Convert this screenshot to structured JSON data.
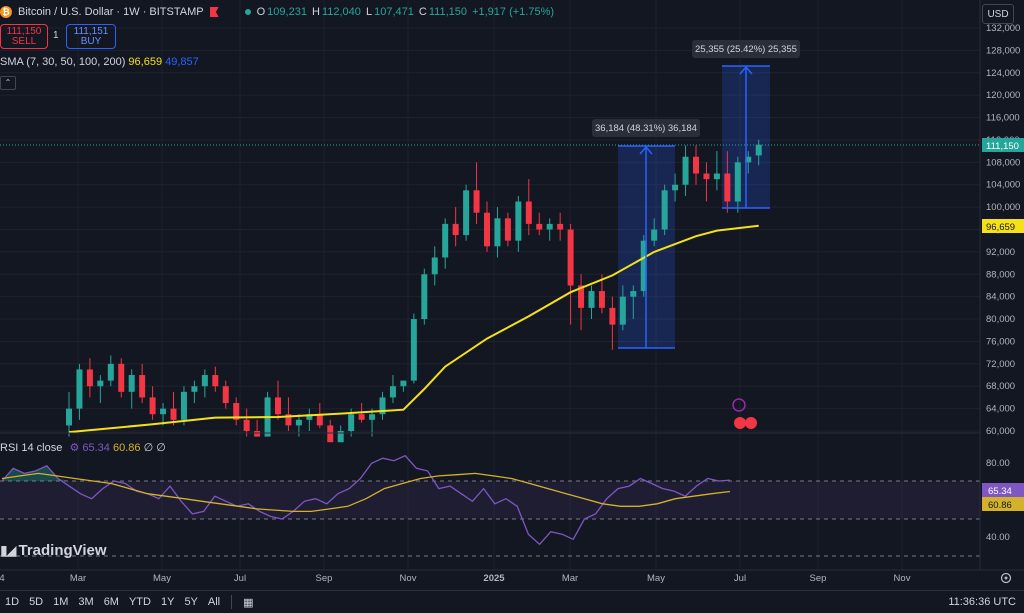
{
  "header": {
    "symbol": "Bitcoin / U.S. Dollar · 1W · BITSTAMP",
    "open_label": "O",
    "open": "109,231",
    "high_label": "H",
    "high": "112,040",
    "low_label": "L",
    "low": "107,471",
    "close_label": "C",
    "close": "111,150",
    "change": "+1,917 (+1.75%)"
  },
  "trade": {
    "sell_price": "111,150",
    "sell_label": "SELL",
    "spread": "1",
    "buy_price": "111,151",
    "buy_label": "BUY"
  },
  "sma": {
    "label": "SMA (7, 30, 50, 100, 200)",
    "v1": "96,659",
    "v2": "49,857"
  },
  "rsi": {
    "label": "RSI 14 close",
    "v1": "65.34",
    "v2": "60.86",
    "v3": "∅",
    "v4": "∅"
  },
  "currency": "USD",
  "price_axis": [
    "132,000",
    "128,000",
    "124,000",
    "120,000",
    "116,000",
    "112,000",
    "108,000",
    "104,000",
    "100,000",
    "96,000",
    "92,000",
    "88,000",
    "84,000",
    "80,000",
    "76,000",
    "72,000",
    "68,000",
    "64,000",
    "60,000"
  ],
  "price_tags": {
    "last": "111,150",
    "sma": "96,659"
  },
  "rsi_axis": [
    "80.00",
    "40.00"
  ],
  "rsi_tags": {
    "rsi": "65.34",
    "ma": "60.86"
  },
  "time_axis": [
    "4",
    "Mar",
    "May",
    "Jul",
    "Sep",
    "Nov",
    "2025",
    "Mar",
    "May",
    "Jul",
    "Sep",
    "Nov"
  ],
  "measure1": {
    "label": "36,184 (48.31%) 36,184"
  },
  "measure2": {
    "label": "25,355 (25.42%) 25,355"
  },
  "logo": "TradingView",
  "ranges": [
    "1D",
    "5D",
    "1M",
    "3M",
    "6M",
    "YTD",
    "1Y",
    "5Y",
    "All"
  ],
  "clock": "11:36:36 UTC",
  "colors": {
    "up": "#26a69a",
    "down": "#f23645",
    "sma": "#f5e11a",
    "rsi": "#7e57c2",
    "rsi_ma": "#d4b12a",
    "bg": "#131722",
    "measure": "#2962ff"
  },
  "chart_data": {
    "type": "candlestick",
    "ylim": [
      60000,
      132000
    ],
    "candles": [
      [
        61000,
        67000,
        59000,
        64000
      ],
      [
        64000,
        72000,
        62000,
        71000
      ],
      [
        71000,
        73000,
        66000,
        68000
      ],
      [
        68000,
        70000,
        65000,
        69000
      ],
      [
        69000,
        73500,
        68000,
        72000
      ],
      [
        72000,
        73000,
        66000,
        67000
      ],
      [
        67000,
        71000,
        64000,
        70000
      ],
      [
        70000,
        72000,
        65000,
        66000
      ],
      [
        66000,
        68000,
        62000,
        63000
      ],
      [
        63000,
        65000,
        61000,
        64000
      ],
      [
        64000,
        67000,
        61000,
        62000
      ],
      [
        62000,
        68000,
        61000,
        67000
      ],
      [
        67000,
        69000,
        65000,
        68000
      ],
      [
        68000,
        71000,
        66000,
        70000
      ],
      [
        70000,
        71500,
        67000,
        68000
      ],
      [
        68000,
        69000,
        64000,
        65000
      ],
      [
        65000,
        66000,
        61000,
        62000
      ],
      [
        62000,
        64000,
        59000,
        60000
      ],
      [
        60000,
        62000,
        58000,
        59000
      ],
      [
        59000,
        67000,
        58000,
        66000
      ],
      [
        66000,
        69000,
        62000,
        63000
      ],
      [
        63000,
        66000,
        60000,
        61000
      ],
      [
        61000,
        63000,
        59000,
        62000
      ],
      [
        62000,
        64000,
        60000,
        63000
      ],
      [
        63000,
        65000,
        60500,
        61000
      ],
      [
        61000,
        62000,
        57000,
        58000
      ],
      [
        58000,
        61000,
        56000,
        60000
      ],
      [
        60000,
        64000,
        59000,
        63000
      ],
      [
        63000,
        65000,
        61500,
        62000
      ],
      [
        62000,
        64000,
        59000,
        63000
      ],
      [
        63000,
        67000,
        62000,
        66000
      ],
      [
        66000,
        70000,
        65000,
        68000
      ],
      [
        68000,
        69000,
        67000,
        69000
      ],
      [
        69000,
        81000,
        68500,
        80000
      ],
      [
        80000,
        89000,
        79000,
        88000
      ],
      [
        88000,
        93000,
        86000,
        91000
      ],
      [
        91000,
        98000,
        89000,
        97000
      ],
      [
        97000,
        100000,
        93000,
        95000
      ],
      [
        95000,
        104000,
        94000,
        103000
      ],
      [
        103000,
        108000,
        97000,
        99000
      ],
      [
        99000,
        101000,
        92000,
        93000
      ],
      [
        93000,
        100000,
        91000,
        98000
      ],
      [
        98000,
        99000,
        93000,
        94000
      ],
      [
        94000,
        102000,
        92000,
        101000
      ],
      [
        101000,
        105000,
        95000,
        97000
      ],
      [
        97000,
        99000,
        95000,
        96000
      ],
      [
        96000,
        98000,
        94000,
        97000
      ],
      [
        97000,
        99000,
        94000,
        96000
      ],
      [
        96000,
        97000,
        79000,
        86000
      ],
      [
        86000,
        88000,
        78000,
        82000
      ],
      [
        82000,
        86000,
        80000,
        85000
      ],
      [
        85000,
        88000,
        81000,
        82000
      ],
      [
        82000,
        84000,
        74500,
        79000
      ],
      [
        79000,
        86000,
        78000,
        84000
      ],
      [
        84000,
        86000,
        80000,
        85000
      ],
      [
        85000,
        95000,
        84000,
        94000
      ],
      [
        94000,
        98000,
        93000,
        96000
      ],
      [
        96000,
        104000,
        95000,
        103000
      ],
      [
        103000,
        106000,
        101000,
        104000
      ],
      [
        104000,
        111000,
        102000,
        109000
      ],
      [
        109000,
        111000,
        104000,
        106000
      ],
      [
        106000,
        108000,
        101000,
        105000
      ],
      [
        105000,
        110000,
        103000,
        106000
      ],
      [
        106000,
        110000,
        99000,
        101000
      ],
      [
        101000,
        109000,
        99000,
        108000
      ],
      [
        108000,
        110000,
        106000,
        109000
      ],
      [
        109231,
        112040,
        107471,
        111150
      ]
    ],
    "sma": [
      [
        0,
        59800
      ],
      [
        8,
        61200
      ],
      [
        14,
        62400
      ],
      [
        20,
        62500
      ],
      [
        26,
        63100
      ],
      [
        32,
        63800
      ],
      [
        34,
        67500
      ],
      [
        36,
        71500
      ],
      [
        40,
        76500
      ],
      [
        44,
        80500
      ],
      [
        48,
        84800
      ],
      [
        52,
        87800
      ],
      [
        56,
        92000
      ],
      [
        60,
        94800
      ],
      [
        62,
        95800
      ],
      [
        66,
        96659
      ]
    ],
    "rsi": [
      65,
      70,
      68,
      69,
      71,
      66,
      63,
      60,
      58,
      62,
      65,
      64,
      61,
      60,
      58,
      63,
      57,
      52,
      53,
      59,
      57,
      55,
      56,
      53,
      51,
      50,
      53,
      57,
      58,
      56,
      60,
      62,
      66,
      72,
      74,
      73,
      75,
      70,
      69,
      62,
      63,
      60,
      57,
      62,
      56,
      58,
      55,
      44,
      40,
      45,
      44,
      42,
      50,
      52,
      58,
      62,
      63,
      66,
      64,
      62,
      61,
      59,
      63,
      66,
      65,
      65.34
    ],
    "rsi_ma": [
      66,
      67,
      68,
      67,
      66,
      65,
      64,
      62,
      60,
      59,
      58,
      57,
      56,
      55,
      54,
      53.5,
      53,
      53,
      54,
      55,
      58,
      62,
      64,
      66,
      67,
      67.5,
      68,
      67,
      66,
      64,
      62,
      60,
      58,
      56,
      55,
      55,
      56,
      58,
      59,
      60,
      60.86
    ]
  }
}
